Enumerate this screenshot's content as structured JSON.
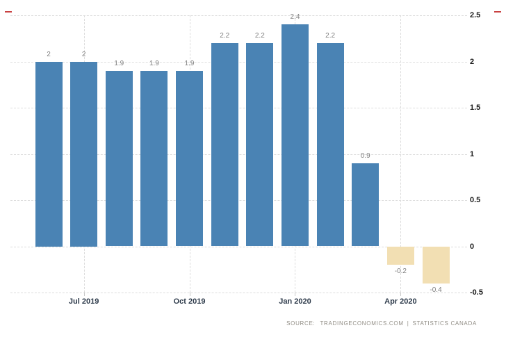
{
  "chart_data": {
    "type": "bar",
    "bars": [
      {
        "label": "2",
        "value": 2
      },
      {
        "label": "2",
        "value": 2
      },
      {
        "label": "1.9",
        "value": 1.9
      },
      {
        "label": "1.9",
        "value": 1.9
      },
      {
        "label": "1.9",
        "value": 1.9
      },
      {
        "label": "2.2",
        "value": 2.2
      },
      {
        "label": "2.2",
        "value": 2.2
      },
      {
        "label": "2.4",
        "value": 2.4
      },
      {
        "label": "2.2",
        "value": 2.2
      },
      {
        "label": "0.9",
        "value": 0.9
      },
      {
        "label": "-0.2",
        "value": -0.2
      },
      {
        "label": "-0.4",
        "value": -0.4
      }
    ],
    "x_axis": {
      "ticks": [
        {
          "label": "Jul 2019",
          "bar_index": 1
        },
        {
          "label": "Oct 2019",
          "bar_index": 4
        },
        {
          "label": "Jan 2020",
          "bar_index": 7
        },
        {
          "label": "Apr 2020",
          "bar_index": 10
        }
      ]
    },
    "y_axis": {
      "side": "right",
      "min": -0.5,
      "max": 2.5,
      "ticks": [
        {
          "label": "2.5",
          "value": 2.5
        },
        {
          "label": "2",
          "value": 2
        },
        {
          "label": "1.5",
          "value": 1.5
        },
        {
          "label": "1",
          "value": 1
        },
        {
          "label": "0.5",
          "value": 0.5
        },
        {
          "label": "0",
          "value": 0
        },
        {
          "label": "-0.5",
          "value": -0.5
        }
      ]
    },
    "grid": true,
    "legend": false,
    "colors": {
      "positive_bar": "#4A83B4",
      "negative_bar": "#F2DFB3",
      "gridline": "#DCDCDC",
      "bar_label": "#7F7F7F",
      "y_tick_label": "#1B1B1B",
      "x_tick_label": "#2D3A4A",
      "accent_dash": "#C94141"
    }
  },
  "source": {
    "label": "SOURCE:",
    "site": "TRADINGECONOMICS.COM",
    "separator": "|",
    "provider": "STATISTICS CANADA"
  }
}
